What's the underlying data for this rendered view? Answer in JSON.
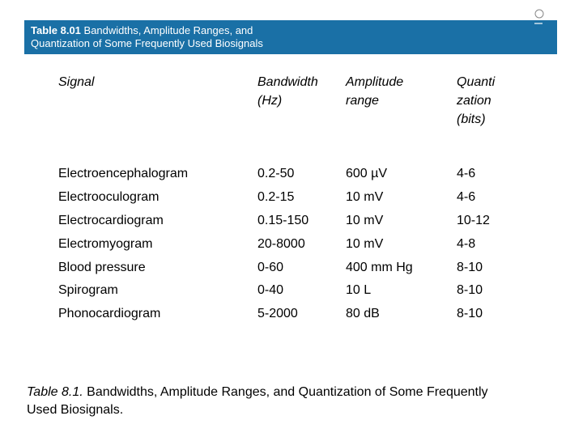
{
  "header": {
    "label": "Table 8.01",
    "title": [
      "Bandwidths, Amplitude Ranges, and",
      "Quantization of Some Frequently Used Biosignals"
    ]
  },
  "table": {
    "columns": [
      [
        "Signal"
      ],
      [
        "Bandwidth",
        "(Hz)"
      ],
      [
        "Amplitude",
        "range"
      ],
      [
        "Quanti",
        "zation",
        "(bits)"
      ]
    ],
    "rows": [
      [
        "Electroencephalogram",
        "0.2-50",
        "600 µV",
        "4-6"
      ],
      [
        "Electrooculogram",
        "0.2-15",
        "10 mV",
        "4-6"
      ],
      [
        "Electrocardiogram",
        "0.15-150",
        "10 mV",
        "10-12"
      ],
      [
        "Electromyogram",
        "20-8000",
        "10 mV",
        "4-8"
      ],
      [
        "Blood pressure",
        "0-60",
        "400 mm Hg",
        "8-10"
      ],
      [
        "Spirogram",
        "0-40",
        "10 L",
        "8-10"
      ],
      [
        "Phonocardiogram",
        "5-2000",
        "80 dB",
        "8-10"
      ]
    ]
  },
  "caption": {
    "label": "Table 8.1.",
    "lines": [
      "Bandwidths, Amplitude Ranges, and Quantization of Some Frequently",
      "Used Biosignals."
    ]
  }
}
